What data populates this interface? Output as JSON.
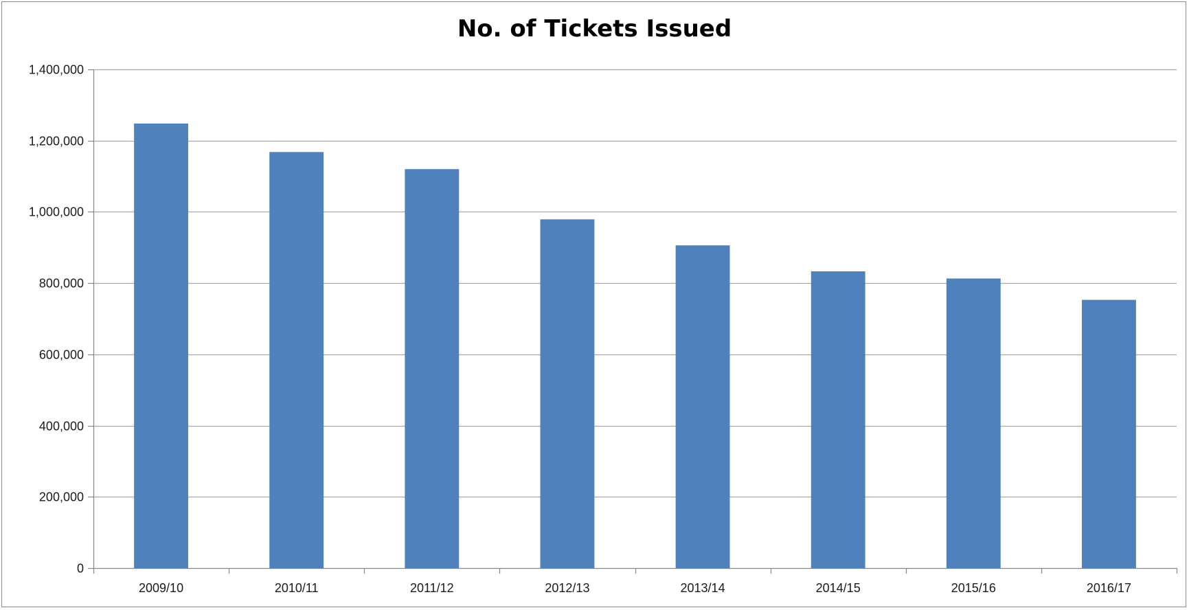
{
  "chart_data": {
    "type": "bar",
    "title": "No. of Tickets Issued",
    "xlabel": "",
    "ylabel": "",
    "categories": [
      "2009/10",
      "2010/11",
      "2011/12",
      "2012/13",
      "2013/14",
      "2014/15",
      "2015/16",
      "2016/17"
    ],
    "values": [
      1248000,
      1168000,
      1120000,
      979000,
      906000,
      833000,
      813000,
      753000
    ],
    "ylim": [
      0,
      1400000
    ],
    "yticks": [
      0,
      200000,
      400000,
      600000,
      800000,
      1000000,
      1200000,
      1400000
    ],
    "ytick_labels": [
      "0",
      "200,000",
      "400,000",
      "600,000",
      "800,000",
      "1,000,000",
      "1,200,000",
      "1,400,000"
    ],
    "grid": true,
    "legend": "none",
    "colors": {
      "bar": "#4f81bd",
      "grid": "#a6a6a6",
      "axis": "#868686"
    }
  }
}
